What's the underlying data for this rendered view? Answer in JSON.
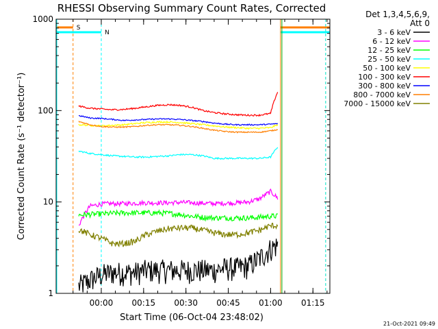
{
  "chart_data": {
    "type": "line",
    "title": "RHESSI Observing Summary Count Rates, Corrected",
    "xlabel": "Start Time (06-Oct-04 23:48:02)",
    "ylabel": "Corrected Count Rate (s⁻¹ detector⁻¹)",
    "yscale": "log",
    "ylim": [
      1,
      1000
    ],
    "xlim_minutes_after_start": [
      -4,
      93
    ],
    "x_ticks": [
      "00:00",
      "00:15",
      "00:30",
      "00:45",
      "01:00",
      "01:15"
    ],
    "x_tick_minutes": [
      12,
      27,
      42,
      57,
      72,
      87
    ],
    "y_ticks": [
      "1",
      "10",
      "100",
      "1000"
    ],
    "y_tick_values": [
      1,
      10,
      100,
      1000
    ],
    "legend_header": [
      "Det 1,3,4,5,6,9,",
      "Att 0"
    ],
    "legend_position": "right",
    "timestamp": "21-Oct-2021 09:49",
    "flags": [
      {
        "label": "S",
        "color": "#ff7f00",
        "bar_start": -4,
        "bar_end": 2,
        "line_start": 2,
        "line_end": 75.5,
        "line_end2": 91.5
      },
      {
        "label": "N",
        "color": "#00ffff",
        "bar_start": -4,
        "bar_end": 12,
        "line_start": 12,
        "line_end": 75.5,
        "line_end2": 91.5,
        "edge": -4
      }
    ],
    "series_time_minutes": [
      4,
      8,
      12,
      16,
      20,
      24,
      28,
      32,
      36,
      40,
      44,
      48,
      52,
      56,
      60,
      64,
      68,
      72,
      74.5
    ],
    "series": [
      {
        "name": "3 - 6 keV",
        "color": "#000000",
        "noise": 0.3,
        "values": [
          1.2,
          1.4,
          1.6,
          1.7,
          1.7,
          1.7,
          1.8,
          1.8,
          1.8,
          1.8,
          1.8,
          1.8,
          1.8,
          1.9,
          1.9,
          2.0,
          2.4,
          3.1,
          3.4
        ]
      },
      {
        "name": "6 - 12 keV",
        "color": "#ff00ff",
        "noise": 0.06,
        "values": [
          5.5,
          9.0,
          9.5,
          9.6,
          9.6,
          9.7,
          9.8,
          9.8,
          9.8,
          9.9,
          9.8,
          9.7,
          9.6,
          9.7,
          9.8,
          10.0,
          10.8,
          13.0,
          11.0
        ]
      },
      {
        "name": "12 - 25 keV",
        "color": "#00ff00",
        "noise": 0.07,
        "values": [
          7.2,
          7.3,
          7.4,
          7.5,
          7.6,
          7.6,
          7.6,
          7.6,
          7.5,
          7.3,
          7.0,
          6.8,
          6.7,
          6.7,
          6.7,
          6.7,
          6.8,
          7.0,
          7.0
        ]
      },
      {
        "name": "25 - 50 keV",
        "color": "#00ffff",
        "noise": 0.02,
        "values": [
          36,
          34,
          33,
          32,
          31.5,
          31,
          31,
          31.5,
          32,
          33,
          33,
          32,
          30,
          30,
          30,
          30,
          30,
          31,
          40
        ]
      },
      {
        "name": "50 - 100 keV",
        "color": "#ffff00",
        "noise": 0.02,
        "values": [
          70,
          69,
          68,
          69,
          70,
          72,
          74,
          75,
          75,
          74,
          72,
          70,
          68,
          66,
          65,
          64,
          64,
          65,
          70
        ]
      },
      {
        "name": "100 - 300 keV",
        "color": "#ff0000",
        "noise": 0.02,
        "values": [
          112,
          106,
          104,
          102,
          103,
          106,
          110,
          114,
          116,
          114,
          109,
          100,
          95,
          92,
          90,
          89,
          89,
          93,
          160
        ]
      },
      {
        "name": "300 - 800 keV",
        "color": "#0000ff",
        "noise": 0.015,
        "values": [
          88,
          83,
          82,
          80,
          78,
          79,
          80,
          81,
          81,
          80,
          78,
          76,
          73,
          71,
          70,
          70,
          70,
          71,
          72
        ]
      },
      {
        "name": "800 - 7000 keV",
        "color": "#ff7f00",
        "noise": 0.015,
        "values": [
          76,
          70,
          67,
          66,
          66,
          67,
          69,
          70,
          70,
          69,
          67,
          64,
          61,
          59,
          58,
          58,
          58,
          60,
          62
        ]
      },
      {
        "name": "7000 - 15000 keV",
        "color": "#808000",
        "noise": 0.08,
        "values": [
          5.0,
          4.4,
          4.0,
          3.5,
          3.5,
          3.7,
          4.4,
          4.8,
          5.1,
          5.2,
          5.2,
          4.9,
          4.6,
          4.4,
          4.4,
          4.6,
          4.9,
          5.5,
          5.5
        ]
      }
    ]
  }
}
